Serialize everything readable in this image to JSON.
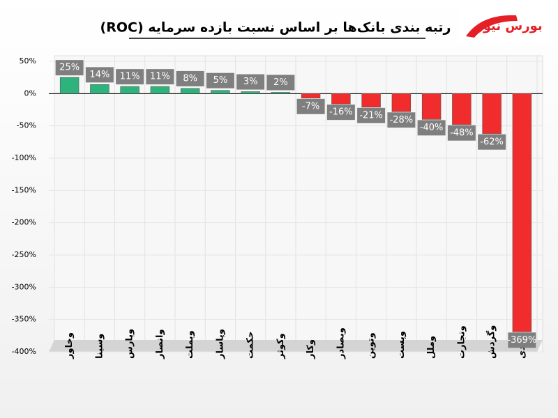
{
  "chart_data": {
    "type": "bar",
    "title": "رتبه بندی بانک‌ها بر اساس نسبت بازده سرمایه (ROC)",
    "logo": "بورس نیوز",
    "categories": [
      "وخاور",
      "وسینا",
      "وپارس",
      "وانصار",
      "وبملت",
      "وپاسار",
      "حکمت",
      "وکوثر",
      "وکار",
      "وبصادر",
      "وتوین",
      "وپست",
      "وملل",
      "وتجارت",
      "وگردش",
      "دی"
    ],
    "values": [
      25,
      14,
      11,
      11,
      8,
      5,
      3,
      2,
      -7,
      -16,
      -21,
      -28,
      -40,
      -48,
      -62,
      -369
    ],
    "value_labels": [
      "25%",
      "14%",
      "11%",
      "11%",
      "8%",
      "5%",
      "3%",
      "2%",
      "-7%",
      "-16%",
      "-21%",
      "-28%",
      "-40%",
      "-48%",
      "-62%",
      "-369%"
    ],
    "positive_color": "#2fb37c",
    "negative_color": "#f02c2c",
    "ylim": [
      -400,
      50
    ],
    "yticks": [
      {
        "value": 50,
        "label": "50%"
      },
      {
        "value": 0,
        "label": "0%"
      },
      {
        "value": -50,
        "label": "-50%"
      },
      {
        "value": -100,
        "label": "-100%"
      },
      {
        "value": -150,
        "label": "-150%"
      },
      {
        "value": -200,
        "label": "-200%"
      },
      {
        "value": -250,
        "label": "-250%"
      },
      {
        "value": -300,
        "label": "-300%"
      },
      {
        "value": -350,
        "label": "-350%"
      },
      {
        "value": -400,
        "label": "-400%"
      }
    ],
    "grid": true
  }
}
